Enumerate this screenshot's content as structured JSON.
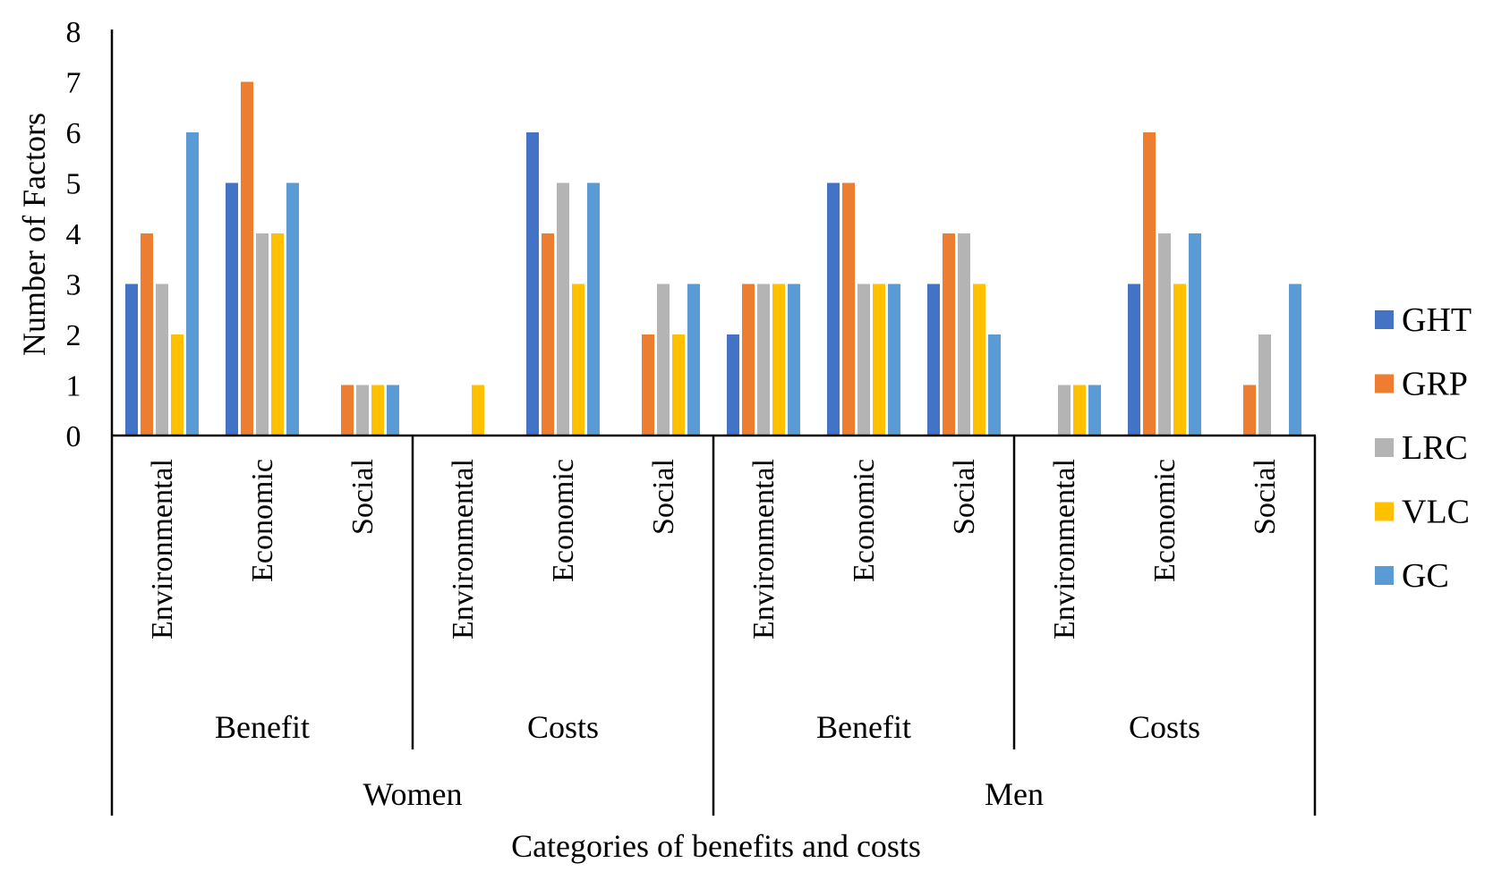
{
  "chart_data": {
    "type": "bar",
    "title": "",
    "xlabel": "Categories of benefits and costs",
    "ylabel": "Number of Factors",
    "ylim": [
      0,
      8
    ],
    "yticks": [
      "0",
      "1",
      "2",
      "3",
      "4",
      "5",
      "6",
      "7",
      "8"
    ],
    "grid": false,
    "legend_position": "right",
    "groups": [
      {
        "label": "Women",
        "subgroups": [
          {
            "label": "Benefit",
            "categories": [
              "Environmental",
              "Economic",
              "Social"
            ]
          },
          {
            "label": "Costs",
            "categories": [
              "Environmental",
              "Economic",
              "Social"
            ]
          }
        ]
      },
      {
        "label": "Men",
        "subgroups": [
          {
            "label": "Benefit",
            "categories": [
              "Environmental",
              "Economic",
              "Social"
            ]
          },
          {
            "label": "Costs",
            "categories": [
              "Environmental",
              "Economic",
              "Social"
            ]
          }
        ]
      }
    ],
    "categories": [
      "Women / Benefit / Environmental",
      "Women / Benefit / Economic",
      "Women / Benefit / Social",
      "Women / Costs / Environmental",
      "Women / Costs / Economic",
      "Women / Costs / Social",
      "Men / Benefit / Environmental",
      "Men / Benefit / Economic",
      "Men / Benefit / Social",
      "Men / Costs / Environmental",
      "Men / Costs / Economic",
      "Men / Costs / Social"
    ],
    "series": [
      {
        "name": "GHT",
        "color": "#4472C4",
        "values": [
          3,
          5,
          0,
          0,
          6,
          0,
          2,
          5,
          3,
          0,
          3,
          0
        ]
      },
      {
        "name": "GRP",
        "color": "#ED7D31",
        "values": [
          4,
          7,
          1,
          0,
          4,
          2,
          3,
          5,
          4,
          0,
          6,
          1
        ]
      },
      {
        "name": "LRC",
        "color": "#B4B4B4",
        "values": [
          3,
          4,
          1,
          0,
          5,
          3,
          3,
          3,
          4,
          1,
          4,
          2
        ]
      },
      {
        "name": "VLC",
        "color": "#FFC000",
        "values": [
          2,
          4,
          1,
          1,
          3,
          2,
          3,
          3,
          3,
          1,
          3,
          0
        ]
      },
      {
        "name": "GC",
        "color": "#5B9BD5",
        "values": [
          6,
          5,
          1,
          0,
          5,
          3,
          3,
          3,
          2,
          1,
          4,
          3
        ]
      }
    ]
  }
}
